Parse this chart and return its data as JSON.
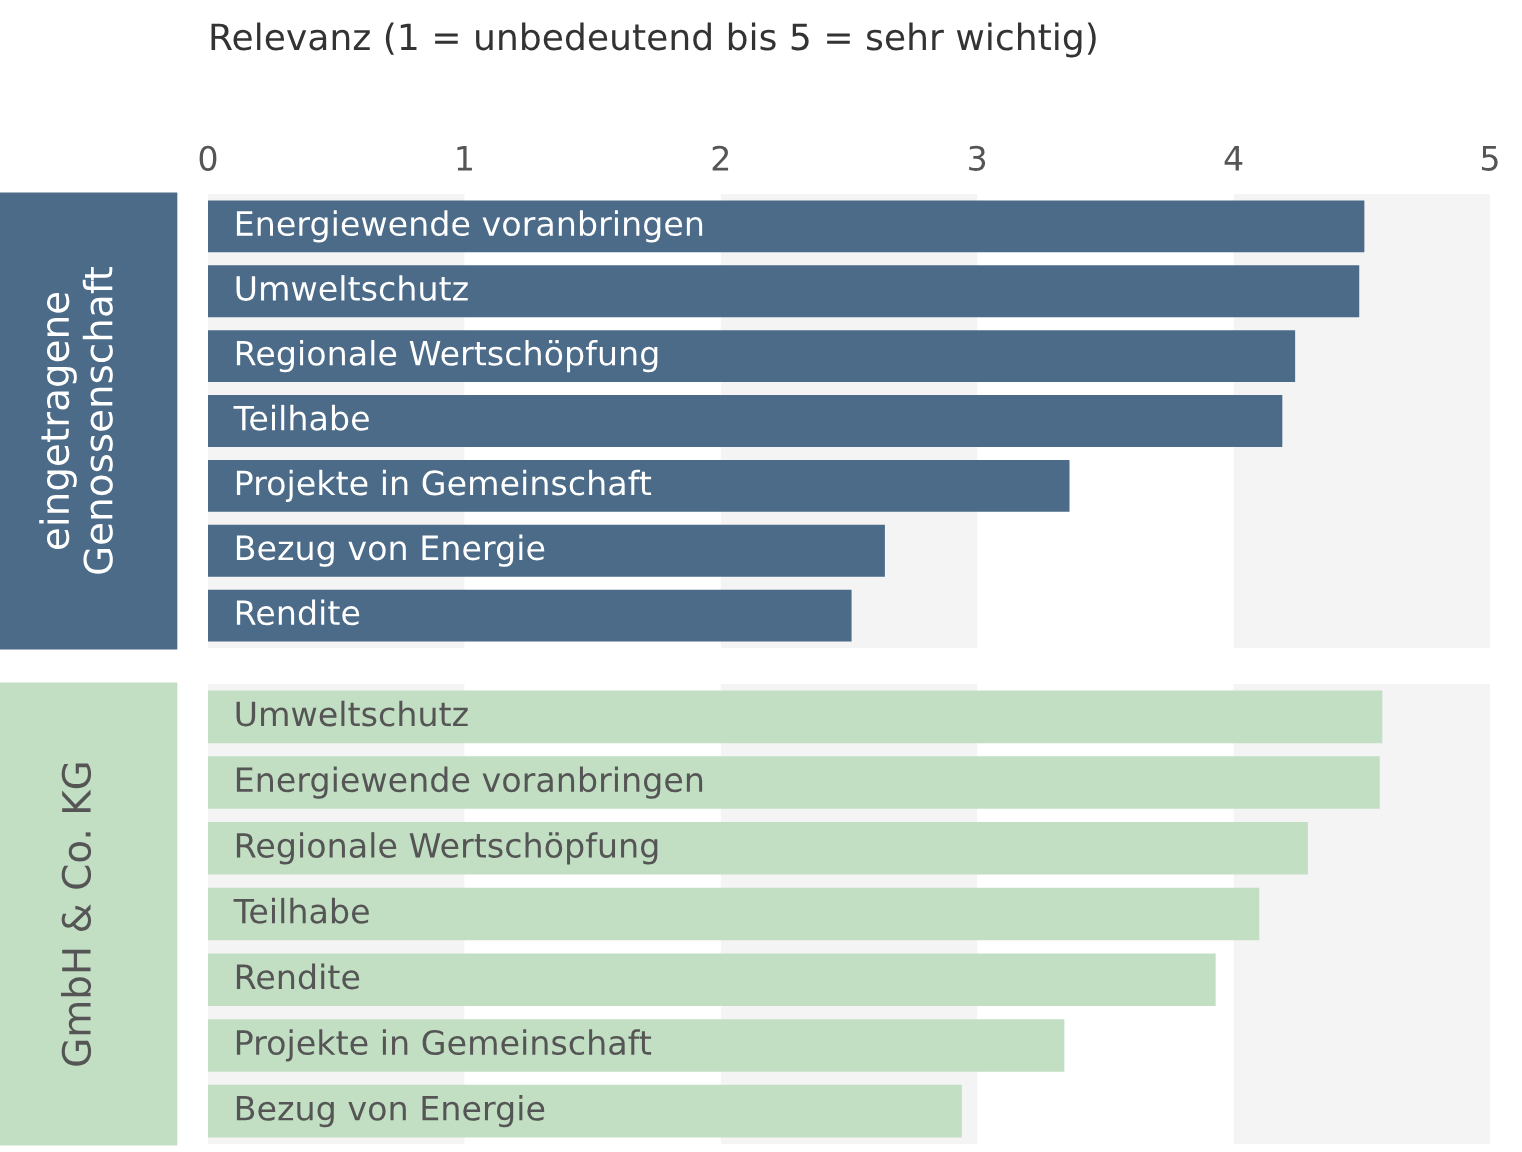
{
  "chart_data": [
    {
      "type": "bar",
      "orientation": "horizontal",
      "title": "Relevanz (1 = unbedeutend bis 5 = sehr wichtig)",
      "ylabel": "eingetragene\nGenossenschaft",
      "categories": [
        "Energiewende voranbringen",
        "Umweltschutz",
        "Regionale Wertschöpfung",
        "Teilhabe",
        "Projekte in Gemeinschaft",
        "Bezug von Energie",
        "Rendite"
      ],
      "series": [
        {
          "color": "#4b6b88",
          "values": [
            4.51,
            4.49,
            4.24,
            4.19,
            3.36,
            2.64,
            2.51
          ]
        }
      ],
      "xlim": [
        0,
        5
      ],
      "xticks": [
        0,
        1,
        2,
        3,
        4,
        5
      ],
      "bands": [
        {
          "axis": "x",
          "from": 0,
          "to": 1,
          "color": "#f4f4f4"
        },
        {
          "axis": "x",
          "from": 2,
          "to": 3,
          "color": "#f4f4f4"
        },
        {
          "axis": "x",
          "from": 4,
          "to": 5,
          "color": "#f4f4f4"
        }
      ]
    },
    {
      "type": "bar",
      "orientation": "horizontal",
      "ylabel": "GmbH & Co. KG",
      "categories": [
        "Umweltschutz",
        "Energiewende voranbringen",
        "Regionale Wertschöpfung",
        "Teilhabe",
        "Rendite",
        "Projekte in Gemeinschaft",
        "Bezug von Energie"
      ],
      "series": [
        {
          "color": "#c2dfc4",
          "values": [
            4.58,
            4.57,
            4.29,
            4.1,
            3.93,
            3.34,
            2.94
          ]
        }
      ],
      "xlim": [
        0,
        5
      ],
      "xticks": [
        0,
        1,
        2,
        3,
        4,
        5
      ],
      "tick_labels": "y",
      "bands": [
        {
          "axis": "x",
          "from": 0,
          "to": 1,
          "color": "#f4f4f4"
        },
        {
          "axis": "x",
          "from": 2,
          "to": 3,
          "color": "#f4f4f4"
        },
        {
          "axis": "x",
          "from": 4,
          "to": 5,
          "color": "#f4f4f4"
        }
      ]
    }
  ]
}
